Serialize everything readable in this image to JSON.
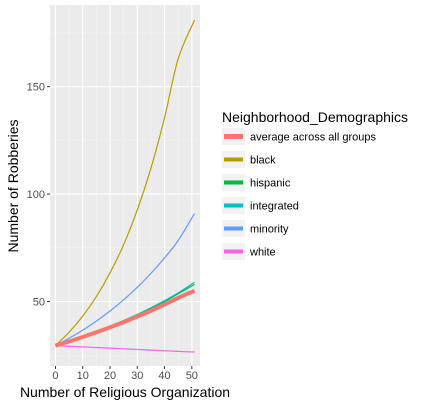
{
  "chart_data": {
    "type": "line",
    "xlabel": "Number of Religious Organization",
    "ylabel": "Number of Robberies",
    "xlim": [
      -2,
      53
    ],
    "ylim": [
      20,
      188
    ],
    "x_ticks": [
      0,
      10,
      20,
      30,
      40,
      50
    ],
    "x_tick_labels": [
      "0",
      "10",
      "20",
      "30",
      "40",
      "50"
    ],
    "y_ticks": [
      50,
      100,
      150
    ],
    "y_tick_labels": [
      "50",
      "100",
      "150"
    ],
    "grid": true,
    "legend": {
      "title": "Neighborhood_Demographics",
      "position": "right"
    },
    "x": [
      0,
      5,
      10,
      15,
      20,
      25,
      30,
      35,
      40,
      45,
      51
    ],
    "series": [
      {
        "name": "average across all groups",
        "color": "#F8766D",
        "thick": true,
        "values": [
          29.5,
          31.4,
          33.5,
          35.7,
          38.0,
          40.4,
          43.0,
          45.7,
          48.6,
          51.7,
          55.0
        ]
      },
      {
        "name": "black",
        "color": "#B79F00",
        "thick": false,
        "values": [
          29.5,
          35.7,
          43.2,
          52.3,
          63.3,
          76.5,
          92.6,
          112.0,
          135.5,
          163.0,
          181.0
        ]
      },
      {
        "name": "hispanic",
        "color": "#00BA38",
        "thick": false,
        "values": [
          29.5,
          31.5,
          33.6,
          35.9,
          38.4,
          41.0,
          43.8,
          46.8,
          50.0,
          53.6,
          58.0
        ]
      },
      {
        "name": "integrated",
        "color": "#00BFC4",
        "thick": false,
        "values": [
          29.5,
          31.5,
          33.7,
          36.0,
          38.5,
          41.2,
          44.0,
          47.1,
          50.4,
          54.0,
          59.0
        ]
      },
      {
        "name": "minority",
        "color": "#619CFF",
        "thick": false,
        "values": [
          29.5,
          32.9,
          36.7,
          40.9,
          45.6,
          50.8,
          56.6,
          63.1,
          70.3,
          78.4,
          91.0
        ]
      },
      {
        "name": "white",
        "color": "#F564E3",
        "thick": false,
        "values": [
          29.5,
          29.2,
          28.9,
          28.6,
          28.3,
          28.0,
          27.7,
          27.4,
          27.1,
          26.8,
          26.5
        ]
      }
    ]
  }
}
